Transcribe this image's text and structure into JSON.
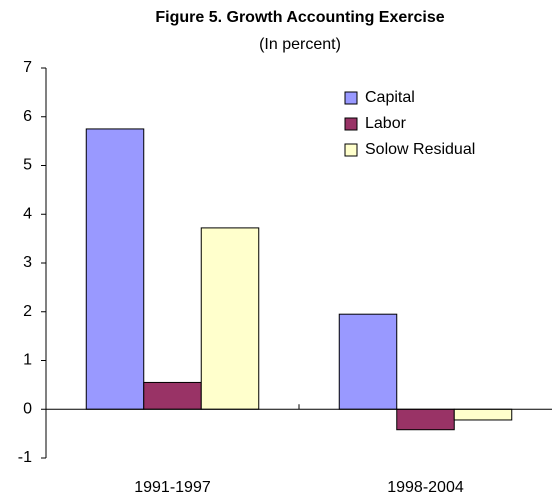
{
  "chart_data": {
    "type": "bar",
    "title": "Figure 5. Growth Accounting Exercise",
    "subtitle": "(In percent)",
    "categories": [
      "1991-1997",
      "1998-2004"
    ],
    "series": [
      {
        "name": "Capital",
        "color": "#9999ff",
        "values": [
          5.75,
          1.95
        ]
      },
      {
        "name": "Labor",
        "color": "#993366",
        "values": [
          0.55,
          -0.42
        ]
      },
      {
        "name": "Solow Residual",
        "color": "#ffffcc",
        "values": [
          3.72,
          -0.22
        ]
      }
    ],
    "ylim": [
      -1,
      7
    ],
    "yticks": [
      -1,
      0,
      1,
      2,
      3,
      4,
      5,
      6,
      7
    ],
    "grid": false,
    "legend": "upper right"
  }
}
